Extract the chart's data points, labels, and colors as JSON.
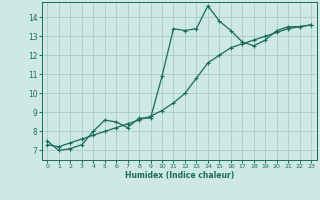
{
  "xlabel": "Humidex (Indice chaleur)",
  "background_color": "#cde8e5",
  "grid_color": "#a8ccc9",
  "line_color": "#1a6b5a",
  "xlim": [
    -0.5,
    23.5
  ],
  "ylim": [
    6.5,
    14.8
  ],
  "xticks": [
    0,
    1,
    2,
    3,
    4,
    5,
    6,
    7,
    8,
    9,
    10,
    11,
    12,
    13,
    14,
    15,
    16,
    17,
    18,
    19,
    20,
    21,
    22,
    23
  ],
  "yticks": [
    7,
    8,
    9,
    10,
    11,
    12,
    13,
    14
  ],
  "series1_x": [
    0,
    1,
    2,
    3,
    4,
    5,
    6,
    7,
    8,
    9,
    10,
    11,
    12,
    13,
    14,
    15,
    16,
    17,
    18,
    19,
    20,
    21,
    22,
    23
  ],
  "series1_y": [
    7.5,
    7.0,
    7.1,
    7.3,
    8.0,
    8.6,
    8.5,
    8.2,
    8.7,
    8.7,
    10.9,
    13.4,
    13.3,
    13.4,
    14.6,
    13.8,
    13.3,
    12.7,
    12.5,
    12.8,
    13.3,
    13.5,
    13.5,
    13.6
  ],
  "series2_x": [
    0,
    1,
    2,
    3,
    4,
    5,
    6,
    7,
    8,
    9,
    10,
    11,
    12,
    13,
    14,
    15,
    16,
    17,
    18,
    19,
    20,
    21,
    22,
    23
  ],
  "series2_y": [
    7.3,
    7.2,
    7.4,
    7.6,
    7.8,
    8.0,
    8.2,
    8.4,
    8.6,
    8.8,
    9.1,
    9.5,
    10.0,
    10.8,
    11.6,
    12.0,
    12.4,
    12.6,
    12.8,
    13.0,
    13.2,
    13.4,
    13.5,
    13.6
  ]
}
